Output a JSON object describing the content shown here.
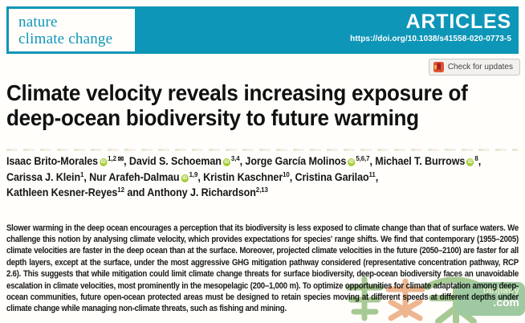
{
  "journal": {
    "logo_line1": "nature",
    "logo_line2": "climate change",
    "brand_color": "#0e96b8"
  },
  "header": {
    "kicker": "ARTICLES",
    "doi": "https://doi.org/10.1038/s41558-020-0773-5",
    "check_for_updates_label": "Check for updates"
  },
  "article": {
    "title_line1": "Climate velocity reveals increasing exposure of",
    "title_line2": "deep-ocean biodiversity to future warming",
    "author_lines": [
      [
        {
          "name": "Isaac Brito-Morales",
          "orcid": true,
          "sup": "1,2",
          "envelope": true,
          "post": ", "
        },
        {
          "name": "David S. Schoeman",
          "orcid": true,
          "sup": "3,4",
          "post": ", "
        },
        {
          "name": "Jorge García Molinos",
          "orcid": true,
          "sup": "5,6,7",
          "post": ", "
        },
        {
          "name": "Michael T. Burrows",
          "orcid": true,
          "sup": "8",
          "post": ","
        }
      ],
      [
        {
          "name": "Carissa J. Klein",
          "orcid": false,
          "sup": "1",
          "post": ", "
        },
        {
          "name": "Nur Arafeh-Dalmau",
          "orcid": true,
          "sup": "1,9",
          "post": ", "
        },
        {
          "name": "Kristin Kaschner",
          "orcid": false,
          "sup": "10",
          "post": ", "
        },
        {
          "name": "Cristina Garilao",
          "orcid": false,
          "sup": "11",
          "post": ","
        }
      ],
      [
        {
          "name": "Kathleen Kesner-Reyes",
          "orcid": false,
          "sup": "12",
          "post": " and "
        },
        {
          "name": "Anthony J. Richardson",
          "orcid": false,
          "sup": "2,13",
          "post": ""
        }
      ]
    ],
    "abstract": "Slower warming in the deep ocean encourages a perception that its biodiversity is less exposed to climate change than that of surface waters. We challenge this notion by analysing climate velocity, which provides expectations for species' range shifts. We find that contemporary (1955–2005) climate velocities are faster in the deep ocean than at the surface. Moreover, projected climate velocities in the future (2050–2100) are faster for all depth layers, except at the surface, under the most aggressive GHG mitigation pathway considered (representative concentration pathway, RCP 2.6). This suggests that while mitigation could limit climate change threats for surface biodiversity, deep-ocean biodiversity faces an unavoidable escalation in climate velocities, most prominently in the mesopelagic (200–1,000 m). To optimize opportunities for climate adaptation among deep-ocean communities, future open-ocean protected areas must be designed to retain species moving at different speeds at different depths under climate change while managing non-climate threats, such as fishing and mining."
  },
  "icons": {
    "orcid": "iD",
    "envelope": "✉"
  },
  "watermark": {
    "site_name": "tanjiaoy",
    "site_tld": ".com"
  }
}
